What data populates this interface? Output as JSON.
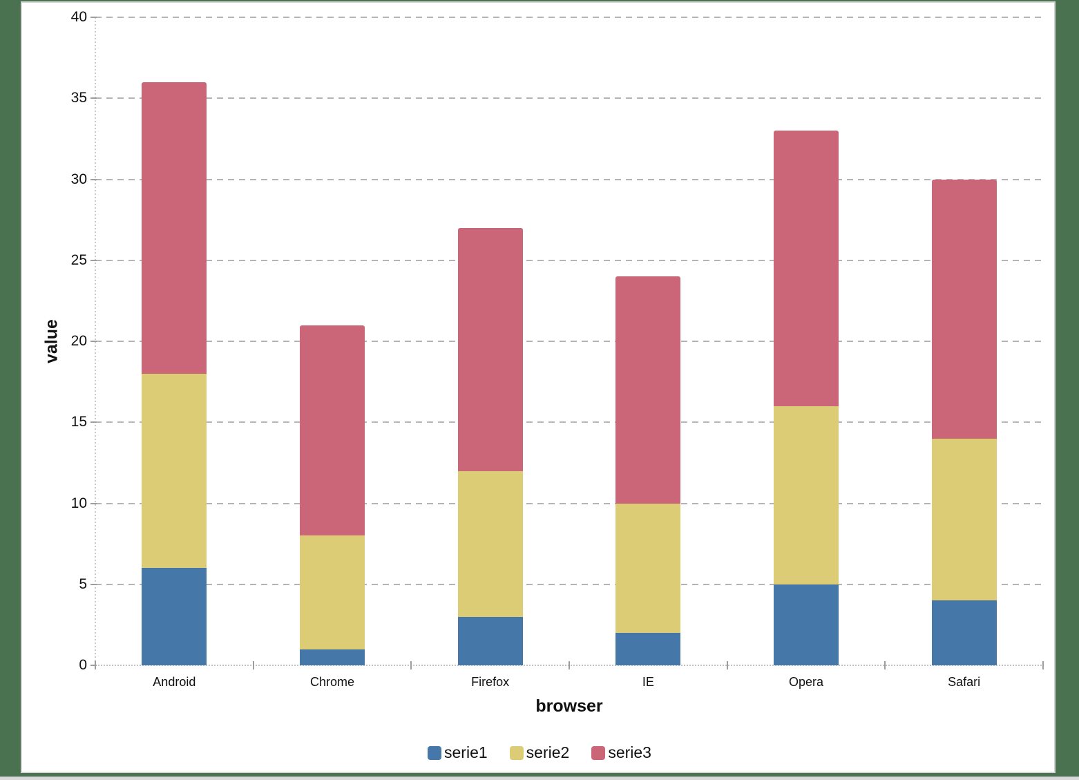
{
  "frame": {
    "background_color": "#4A7150",
    "panel_color": "#ffffff",
    "panel_border_color": "#d4d4d4",
    "bottom_strip_color": "#d9d9d9"
  },
  "chart_data": {
    "type": "bar",
    "stacked": true,
    "title": "",
    "xlabel": "browser",
    "ylabel": "value",
    "categories": [
      "Android",
      "Chrome",
      "Firefox",
      "IE",
      "Opera",
      "Safari"
    ],
    "series": [
      {
        "name": "serie1",
        "color": "#4578A9",
        "values": [
          6,
          1,
          3,
          2,
          5,
          4
        ]
      },
      {
        "name": "serie2",
        "color": "#DCCC75",
        "values": [
          12,
          7,
          9,
          8,
          11,
          10
        ]
      },
      {
        "name": "serie3",
        "color": "#CA6677",
        "values": [
          18,
          13,
          15,
          14,
          17,
          16
        ]
      }
    ],
    "totals": [
      36,
      21,
      27,
      24,
      33,
      30
    ],
    "ylim": [
      0,
      40
    ],
    "ytick_step": 5,
    "yticks": [
      "0",
      "5",
      "10",
      "15",
      "20",
      "25",
      "30",
      "35",
      "40"
    ],
    "grid": "horizontal dashed",
    "grid_color": "#b4b4b4",
    "legend_position": "bottom",
    "legend_labels": [
      "serie1",
      "serie2",
      "serie3"
    ]
  }
}
